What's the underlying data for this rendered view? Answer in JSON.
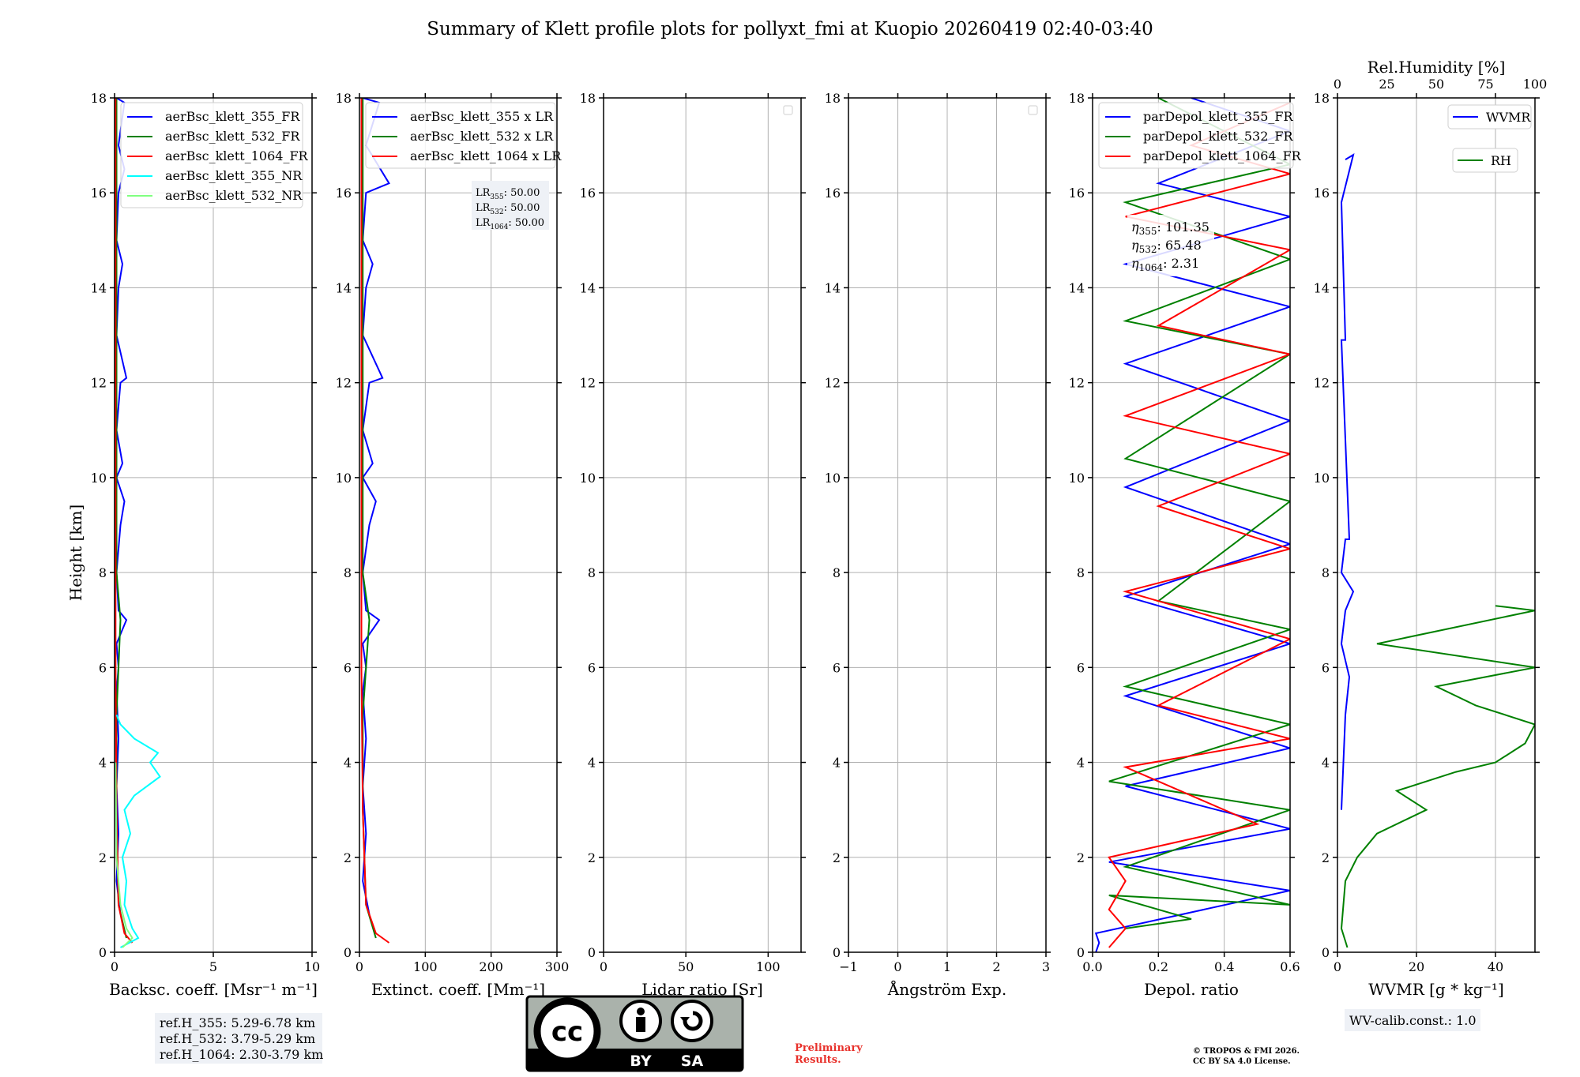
{
  "title": "Summary of Klett profile plots for pollyxt_fmi at Kuopio 20260419 02:40-03:40",
  "y_label": "Height [km]",
  "y_ticks": [
    "0",
    "2",
    "4",
    "6",
    "8",
    "10",
    "12",
    "14",
    "16",
    "18"
  ],
  "colors": {
    "blue": "#0000ff",
    "green": "#008000",
    "red": "#ff0000",
    "cyan": "#00ffff",
    "lightgreen": "#80ff80",
    "grid": "#b0b0b0"
  },
  "chart_data": [
    {
      "type": "line",
      "id": "backscatter",
      "xlabel": "Backsc. coeff. [Msr⁻¹ m⁻¹]",
      "xlim": [
        0,
        10
      ],
      "ylim": [
        0,
        18
      ],
      "x_ticks": [
        0,
        5,
        10
      ],
      "x_tick_labels": [
        "0",
        "5",
        "10"
      ],
      "legend": [
        "aerBsc_klett_355_FR",
        "aerBsc_klett_532_FR",
        "aerBsc_klett_1064_FR",
        "aerBsc_klett_355_NR",
        "aerBsc_klett_532_NR"
      ],
      "series": [
        {
          "name": "aerBsc_klett_355_FR",
          "color": "blue",
          "points": [
            [
              0.3,
              0.8
            ],
            [
              0.1,
              1.5
            ],
            [
              0.2,
              2.5
            ],
            [
              0.1,
              3.5
            ],
            [
              0.2,
              4.5
            ],
            [
              0.1,
              5.5
            ],
            [
              0.2,
              6.0
            ],
            [
              0.1,
              6.5
            ],
            [
              0.6,
              7.0
            ],
            [
              0.2,
              7.2
            ],
            [
              0.1,
              8.0
            ],
            [
              0.3,
              9.0
            ],
            [
              0.5,
              9.5
            ],
            [
              0.1,
              10.0
            ],
            [
              0.4,
              10.3
            ],
            [
              0.1,
              11.0
            ],
            [
              0.3,
              12.0
            ],
            [
              0.6,
              12.1
            ],
            [
              0.1,
              13.0
            ],
            [
              0.2,
              14.0
            ],
            [
              0.4,
              14.5
            ],
            [
              0.1,
              15.0
            ],
            [
              0.2,
              16.0
            ],
            [
              0.5,
              16.5
            ],
            [
              0.2,
              17.0
            ],
            [
              0.5,
              17.9
            ],
            [
              0.1,
              18.0
            ]
          ]
        },
        {
          "name": "aerBsc_klett_532_FR",
          "color": "green",
          "points": [
            [
              0.6,
              0.3
            ],
            [
              0.2,
              1.0
            ],
            [
              0.1,
              3.0
            ],
            [
              0.1,
              5.0
            ],
            [
              0.3,
              7.0
            ],
            [
              0.1,
              8.0
            ],
            [
              0.1,
              12.0
            ],
            [
              0.1,
              16.0
            ],
            [
              0.1,
              18.0
            ]
          ]
        },
        {
          "name": "aerBsc_klett_1064_FR",
          "color": "red",
          "points": [
            [
              0.9,
              0.2
            ],
            [
              0.5,
              0.4
            ],
            [
              0.2,
              1.0
            ],
            [
              0.1,
              3.0
            ],
            [
              0.05,
              6.0
            ],
            [
              0.05,
              18.0
            ]
          ]
        },
        {
          "name": "aerBsc_klett_355_NR",
          "color": "cyan",
          "points": [
            [
              0.3,
              0.1
            ],
            [
              1.2,
              0.3
            ],
            [
              0.9,
              0.5
            ],
            [
              0.5,
              1.0
            ],
            [
              0.6,
              1.5
            ],
            [
              0.4,
              2.0
            ],
            [
              0.8,
              2.5
            ],
            [
              0.5,
              3.0
            ],
            [
              1.0,
              3.3
            ],
            [
              2.3,
              3.7
            ],
            [
              1.8,
              4.0
            ],
            [
              2.2,
              4.2
            ],
            [
              1.0,
              4.5
            ],
            [
              0.3,
              4.8
            ],
            [
              0.1,
              5.0
            ]
          ]
        },
        {
          "name": "aerBsc_klett_532_NR",
          "color": "lightgreen",
          "points": [
            [
              0.4,
              0.1
            ],
            [
              0.9,
              0.3
            ],
            [
              0.6,
              0.5
            ],
            [
              0.3,
              1.0
            ],
            [
              0.1,
              2.0
            ],
            [
              0.05,
              4.0
            ]
          ]
        }
      ],
      "note": [
        "ref.H_355: 5.29-6.78 km",
        "ref.H_532: 3.79-5.29 km",
        "ref.H_1064: 2.30-3.79 km"
      ]
    },
    {
      "type": "line",
      "id": "extinction",
      "xlabel": "Extinct. coeff. [Mm⁻¹]",
      "xlim": [
        0,
        300
      ],
      "ylim": [
        0,
        18
      ],
      "x_ticks": [
        0,
        100,
        200,
        300
      ],
      "x_tick_labels": [
        "0",
        "100",
        "200",
        "300"
      ],
      "legend": [
        "aerBsc_klett_355 x LR",
        "aerBsc_klett_532 x LR",
        "aerBsc_klett_1064 x LR"
      ],
      "lr_labels": [
        {
          "sub": "355",
          "text": ": 50.00"
        },
        {
          "sub": "532",
          "text": ": 50.00"
        },
        {
          "sub": "1064",
          "text": ": 50.00"
        }
      ],
      "series": [
        {
          "name": "aerBsc_klett_355 x LR",
          "color": "blue",
          "points": [
            [
              15,
              0.8
            ],
            [
              5,
              1.5
            ],
            [
              10,
              2.5
            ],
            [
              5,
              3.5
            ],
            [
              10,
              4.5
            ],
            [
              5,
              5.5
            ],
            [
              10,
              6.0
            ],
            [
              5,
              6.5
            ],
            [
              30,
              7.0
            ],
            [
              10,
              7.2
            ],
            [
              5,
              8.0
            ],
            [
              15,
              9.0
            ],
            [
              25,
              9.5
            ],
            [
              5,
              10.0
            ],
            [
              20,
              10.3
            ],
            [
              5,
              11.0
            ],
            [
              15,
              12.0
            ],
            [
              35,
              12.1
            ],
            [
              5,
              13.0
            ],
            [
              10,
              14.0
            ],
            [
              20,
              14.5
            ],
            [
              5,
              15.0
            ],
            [
              10,
              16.0
            ],
            [
              45,
              16.2
            ],
            [
              10,
              17.0
            ],
            [
              30,
              17.9
            ],
            [
              5,
              18.0
            ]
          ]
        },
        {
          "name": "aerBsc_klett_532 x LR",
          "color": "green",
          "points": [
            [
              25,
              0.3
            ],
            [
              10,
              1.0
            ],
            [
              5,
              3.0
            ],
            [
              5,
              5.0
            ],
            [
              15,
              7.0
            ],
            [
              5,
              8.0
            ],
            [
              5,
              12.0
            ],
            [
              5,
              16.0
            ],
            [
              5,
              18.0
            ]
          ]
        },
        {
          "name": "aerBsc_klett_1064 x LR",
          "color": "red",
          "points": [
            [
              45,
              0.2
            ],
            [
              25,
              0.4
            ],
            [
              10,
              1.0
            ],
            [
              5,
              3.0
            ],
            [
              3,
              6.0
            ],
            [
              3,
              18.0
            ]
          ]
        }
      ]
    },
    {
      "type": "line",
      "id": "lidar-ratio",
      "xlabel": "Lidar ratio [Sr]",
      "xlim": [
        0,
        120
      ],
      "ylim": [
        0,
        18
      ],
      "x_ticks": [
        0,
        50,
        100
      ],
      "x_tick_labels": [
        "0",
        "50",
        "100"
      ],
      "series": []
    },
    {
      "type": "line",
      "id": "angstrom",
      "xlabel": "Ångström Exp.",
      "xlim": [
        -1,
        3
      ],
      "ylim": [
        0,
        18
      ],
      "x_ticks": [
        -1,
        0,
        1,
        2,
        3
      ],
      "x_tick_labels": [
        "−1",
        "0",
        "1",
        "2",
        "3"
      ],
      "series": []
    },
    {
      "type": "line",
      "id": "depol",
      "xlabel": "Depol. ratio",
      "xlim": [
        0,
        0.6
      ],
      "ylim": [
        0,
        18
      ],
      "x_ticks": [
        0,
        0.2,
        0.4,
        0.6
      ],
      "x_tick_labels": [
        "0.0",
        "0.2",
        "0.4",
        "0.6"
      ],
      "legend": [
        "parDepol_klett_355_FR",
        "parDepol_klett_532_FR",
        "parDepol_klett_1064_FR"
      ],
      "eta_labels": [
        {
          "sub": "355",
          "text": ": 101.35"
        },
        {
          "sub": "532",
          "text": ": 65.48"
        },
        {
          "sub": "1064",
          "text": ": 2.31"
        }
      ],
      "series": [
        {
          "name": "parDepol_klett_355_FR",
          "color": "blue",
          "points": [
            [
              0.01,
              0.0
            ],
            [
              0.02,
              0.2
            ],
            [
              0.01,
              0.4
            ],
            [
              0.6,
              1.3
            ],
            [
              0.05,
              1.9
            ],
            [
              0.6,
              2.6
            ],
            [
              0.1,
              3.5
            ],
            [
              0.6,
              4.3
            ],
            [
              0.1,
              5.4
            ],
            [
              0.6,
              6.5
            ],
            [
              0.1,
              7.5
            ],
            [
              0.6,
              8.6
            ],
            [
              0.1,
              9.8
            ],
            [
              0.6,
              11.2
            ],
            [
              0.1,
              12.4
            ],
            [
              0.6,
              13.6
            ],
            [
              0.1,
              14.5
            ],
            [
              0.6,
              15.5
            ],
            [
              0.2,
              16.2
            ],
            [
              0.6,
              17.3
            ],
            [
              0.3,
              18.0
            ]
          ]
        },
        {
          "name": "parDepol_klett_532_FR",
          "color": "green",
          "points": [
            [
              0.1,
              0.5
            ],
            [
              0.3,
              0.7
            ],
            [
              0.05,
              1.2
            ],
            [
              0.6,
              1.0
            ],
            [
              0.1,
              1.8
            ],
            [
              0.6,
              3.0
            ],
            [
              0.05,
              3.6
            ],
            [
              0.6,
              4.8
            ],
            [
              0.1,
              5.6
            ],
            [
              0.6,
              6.8
            ],
            [
              0.2,
              7.4
            ],
            [
              0.6,
              9.5
            ],
            [
              0.1,
              10.4
            ],
            [
              0.6,
              12.6
            ],
            [
              0.1,
              13.3
            ],
            [
              0.6,
              14.6
            ],
            [
              0.1,
              15.8
            ],
            [
              0.6,
              16.6
            ],
            [
              0.2,
              18.0
            ]
          ]
        },
        {
          "name": "parDepol_klett_1064_FR",
          "color": "red",
          "points": [
            [
              0.05,
              0.1
            ],
            [
              0.1,
              0.5
            ],
            [
              0.05,
              0.9
            ],
            [
              0.1,
              1.5
            ],
            [
              0.05,
              2.0
            ],
            [
              0.5,
              2.7
            ],
            [
              0.1,
              3.9
            ],
            [
              0.6,
              4.5
            ],
            [
              0.2,
              5.2
            ],
            [
              0.6,
              6.6
            ],
            [
              0.1,
              7.6
            ],
            [
              0.6,
              8.5
            ],
            [
              0.2,
              9.4
            ],
            [
              0.6,
              10.5
            ],
            [
              0.1,
              11.3
            ],
            [
              0.6,
              12.6
            ],
            [
              0.2,
              13.2
            ],
            [
              0.6,
              14.8
            ],
            [
              0.1,
              15.5
            ],
            [
              0.6,
              16.4
            ],
            [
              0.3,
              17.0
            ],
            [
              0.6,
              17.9
            ]
          ]
        }
      ]
    },
    {
      "type": "line",
      "id": "wvmr",
      "xlabel": "WVMR [g * kg⁻¹]",
      "xlim": [
        0,
        50
      ],
      "ylim": [
        0,
        18
      ],
      "x_ticks": [
        0,
        20,
        40
      ],
      "x_tick_labels": [
        "0",
        "20",
        "40"
      ],
      "top_axis": {
        "label": "Rel.Humidity [%]",
        "range": [
          0,
          100
        ],
        "ticks": [
          0,
          25,
          50,
          75,
          100
        ],
        "tick_labels": [
          "0",
          "25",
          "50",
          "75",
          "100"
        ]
      },
      "legend": [
        "WVMR",
        "RH"
      ],
      "series": [
        {
          "name": "WVMR",
          "color": "blue",
          "points": [
            [
              1,
              3.0
            ],
            [
              1.5,
              4.0
            ],
            [
              2,
              5.0
            ],
            [
              3,
              5.8
            ],
            [
              1,
              6.5
            ],
            [
              2,
              7.2
            ],
            [
              4,
              7.6
            ],
            [
              1,
              8.0
            ],
            [
              2,
              8.7
            ],
            [
              3,
              8.7
            ],
            [
              1,
              12.9
            ],
            [
              2,
              12.9
            ],
            [
              1,
              15.8
            ],
            [
              4,
              16.8
            ],
            [
              2,
              16.7
            ]
          ]
        },
        {
          "name": "RH",
          "color": "green",
          "points": [
            [
              5,
              0.1
            ],
            [
              2,
              0.5
            ],
            [
              4,
              1.5
            ],
            [
              10,
              2.0
            ],
            [
              20,
              2.5
            ],
            [
              45,
              3.0
            ],
            [
              30,
              3.4
            ],
            [
              60,
              3.8
            ],
            [
              80,
              4.0
            ],
            [
              95,
              4.4
            ],
            [
              100,
              4.8
            ],
            [
              70,
              5.2
            ],
            [
              50,
              5.6
            ],
            [
              100,
              6.0
            ],
            [
              20,
              6.5
            ],
            [
              100,
              7.2
            ],
            [
              80,
              7.3
            ]
          ]
        }
      ],
      "note": [
        "WV-calib.const.: 1.0"
      ]
    }
  ],
  "footer": {
    "license_cc": "cc",
    "license_by": "BY",
    "license_sa": "SA",
    "preliminary": [
      "Preliminary",
      "Results."
    ],
    "copyright": [
      "© TROPOS & FMI 2026.",
      "CC BY SA 4.0 License."
    ]
  }
}
